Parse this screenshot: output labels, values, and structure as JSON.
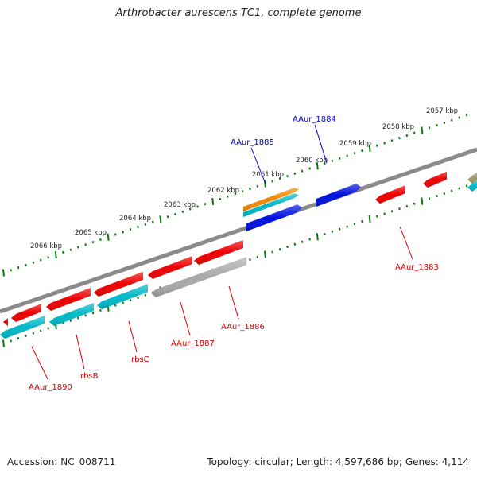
{
  "title": "Arthrobacter aurescens TC1, complete genome",
  "footer": {
    "accession": "Accession: NC_008711",
    "summary": "Topology: circular; Length: 4,597,686 bp; Genes: 4,114"
  },
  "colors": {
    "backbone": "#8a8a8a",
    "tick": "#0a7a0a",
    "forward_label": "#0000cc",
    "reverse_label": "#dd0000",
    "cds_red": "#ee0000",
    "cds_cyan": "#00b8c8",
    "cds_gray": "#a8a8a8",
    "cds_blue": "#0010dd",
    "cds_orange": "#f08800",
    "cds_olive": "#a09a6a"
  },
  "kbp_labels": [
    "2057 kbp",
    "2058 kbp",
    "2059 kbp",
    "2060 kbp",
    "2061 kbp",
    "2062 kbp",
    "2063 kbp",
    "2064 kbp",
    "2065 kbp",
    "2066 kbp"
  ],
  "gene_labels": [
    {
      "text": "AAur_1885",
      "strand": "forward"
    },
    {
      "text": "AAur_1884",
      "strand": "forward"
    },
    {
      "text": "AAur_1883",
      "strand": "reverse"
    },
    {
      "text": "AAur_1886",
      "strand": "reverse"
    },
    {
      "text": "AAur_1887",
      "strand": "reverse"
    },
    {
      "text": "rbsC",
      "strand": "reverse"
    },
    {
      "text": "rbsB",
      "strand": "reverse"
    },
    {
      "text": "AAur_1890",
      "strand": "reverse"
    }
  ]
}
